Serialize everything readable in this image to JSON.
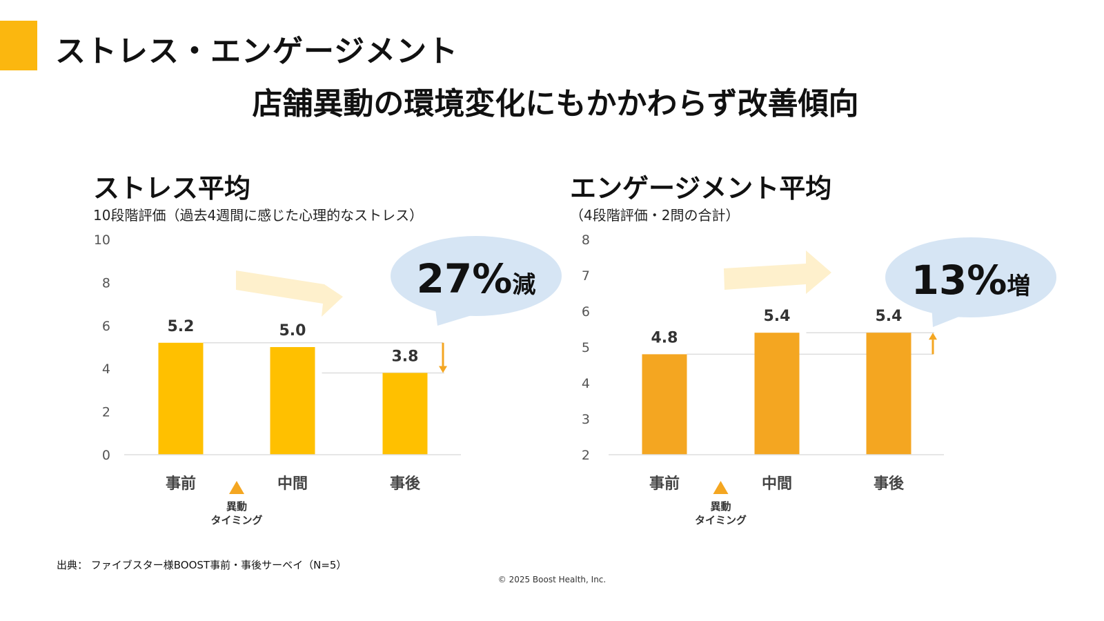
{
  "header": {
    "title": "ストレス・エンゲージメント",
    "subtitle": "店舗異動の環境変化にもかかわらず改善傾向",
    "accent_color": "#FBB70F"
  },
  "chart_data": [
    {
      "type": "bar",
      "title": "ストレス平均",
      "subtitle": "10段階評価（過去4週間に感じた心理的なストレス）",
      "categories": [
        "事前",
        "中間",
        "事後"
      ],
      "values": [
        5.2,
        5.0,
        3.8
      ],
      "data_labels": [
        "5.2",
        "5.0",
        "3.8"
      ],
      "ylim": [
        0,
        10
      ],
      "yticks": [
        0,
        2,
        4,
        6,
        8,
        10
      ],
      "bar_color": "#FFC000",
      "grid": false,
      "callout": {
        "value": "27%",
        "suffix": "減",
        "direction": "down"
      },
      "marker": {
        "label_line1": "異動",
        "label_line2": "タイミング",
        "position": "between 事前 and 中間"
      }
    },
    {
      "type": "bar",
      "title": "エンゲージメント平均",
      "subtitle": "（4段階評価・2問の合計）",
      "categories": [
        "事前",
        "中間",
        "事後"
      ],
      "values": [
        4.8,
        5.4,
        5.4
      ],
      "data_labels": [
        "4.8",
        "5.4",
        "5.4"
      ],
      "ylim": [
        2,
        8
      ],
      "yticks": [
        2,
        3,
        4,
        5,
        6,
        7,
        8
      ],
      "bar_color": "#F4A621",
      "grid": false,
      "callout": {
        "value": "13%",
        "suffix": "増",
        "direction": "up"
      },
      "marker": {
        "label_line1": "異動",
        "label_line2": "タイミング",
        "position": "between 事前 and 中間"
      }
    }
  ],
  "footer": {
    "source": "出典： ファイブスター様BOOST事前・事後サーベイ（N=5）",
    "copyright": "© 2025 Boost Health, Inc."
  },
  "colors": {
    "callout_bg": "#D6E5F4",
    "trend_arrow": "#FEF0CC",
    "change_arrow": "#F4A621",
    "marker": "#F4A621"
  }
}
